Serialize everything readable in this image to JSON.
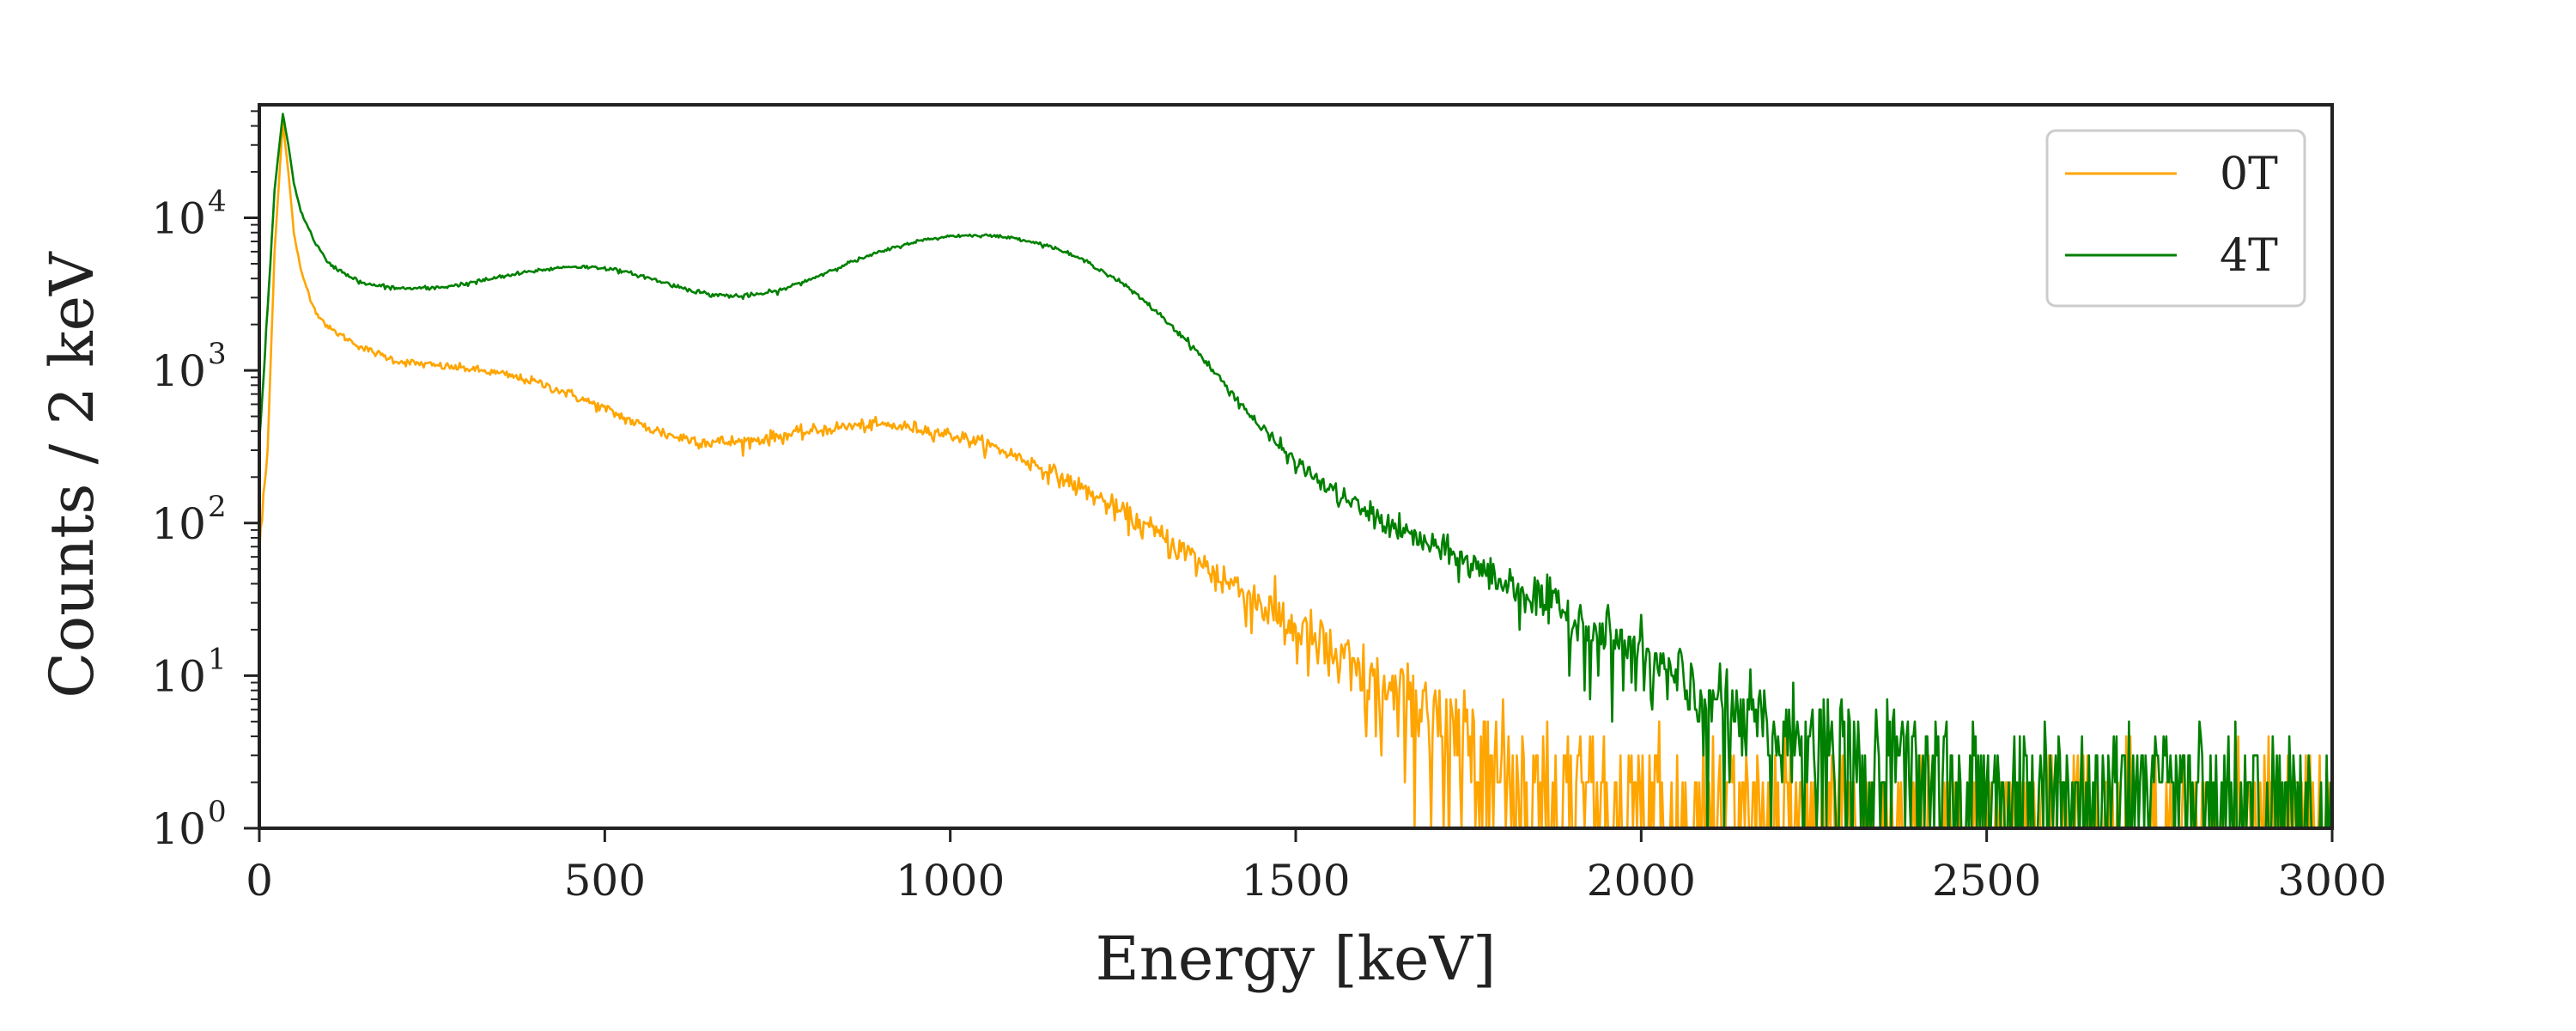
{
  "chart_data": {
    "type": "line",
    "xlabel": "Energy [keV]",
    "ylabel": "Counts / 2 keV",
    "xlim": [
      0,
      3000
    ],
    "ylim": [
      1,
      55000
    ],
    "yscale": "log",
    "grid": false,
    "legend_position": "top-right",
    "x_ticks": [
      "0",
      "500",
      "1000",
      "1500",
      "2000",
      "2500",
      "3000"
    ],
    "y_ticks": [
      {
        "base": "10",
        "exp": "0"
      },
      {
        "base": "10",
        "exp": "1"
      },
      {
        "base": "10",
        "exp": "2"
      },
      {
        "base": "10",
        "exp": "3"
      },
      {
        "base": "10",
        "exp": "4"
      }
    ],
    "bin_width_keV": 2,
    "series": [
      {
        "name": "0T",
        "color": "#ffa500",
        "points": [
          [
            0,
            65
          ],
          [
            12,
            300
          ],
          [
            22,
            6000
          ],
          [
            34,
            42000
          ],
          [
            42,
            20000
          ],
          [
            50,
            8000
          ],
          [
            60,
            4500
          ],
          [
            80,
            2500
          ],
          [
            100,
            1900
          ],
          [
            150,
            1400
          ],
          [
            200,
            1150
          ],
          [
            250,
            1080
          ],
          [
            300,
            1030
          ],
          [
            350,
            950
          ],
          [
            400,
            840
          ],
          [
            450,
            700
          ],
          [
            500,
            560
          ],
          [
            550,
            440
          ],
          [
            600,
            370
          ],
          [
            650,
            340
          ],
          [
            700,
            340
          ],
          [
            750,
            370
          ],
          [
            800,
            400
          ],
          [
            850,
            430
          ],
          [
            900,
            440
          ],
          [
            950,
            420
          ],
          [
            1000,
            380
          ],
          [
            1050,
            330
          ],
          [
            1100,
            270
          ],
          [
            1150,
            210
          ],
          [
            1200,
            160
          ],
          [
            1250,
            115
          ],
          [
            1300,
            85
          ],
          [
            1350,
            60
          ],
          [
            1400,
            42
          ],
          [
            1450,
            30
          ],
          [
            1500,
            20
          ],
          [
            1550,
            14
          ],
          [
            1600,
            9
          ],
          [
            1650,
            6.5
          ],
          [
            1700,
            4.5
          ],
          [
            1750,
            3.2
          ],
          [
            1800,
            2.3
          ],
          [
            1850,
            1.8
          ],
          [
            1900,
            1.5
          ],
          [
            1950,
            1.3
          ],
          [
            2000,
            1.2
          ],
          [
            2200,
            1.05
          ],
          [
            2500,
            1.0
          ],
          [
            3000,
            1.0
          ]
        ]
      },
      {
        "name": "4T",
        "color": "#008000",
        "points": [
          [
            0,
            330
          ],
          [
            12,
            2500
          ],
          [
            22,
            15000
          ],
          [
            34,
            48000
          ],
          [
            42,
            30000
          ],
          [
            50,
            17000
          ],
          [
            60,
            11000
          ],
          [
            80,
            7000
          ],
          [
            100,
            5000
          ],
          [
            150,
            3700
          ],
          [
            200,
            3450
          ],
          [
            250,
            3450
          ],
          [
            300,
            3700
          ],
          [
            350,
            4100
          ],
          [
            400,
            4500
          ],
          [
            450,
            4800
          ],
          [
            500,
            4700
          ],
          [
            550,
            4200
          ],
          [
            600,
            3600
          ],
          [
            650,
            3150
          ],
          [
            700,
            3050
          ],
          [
            750,
            3300
          ],
          [
            800,
            4000
          ],
          [
            850,
            5000
          ],
          [
            900,
            6000
          ],
          [
            950,
            7000
          ],
          [
            1000,
            7600
          ],
          [
            1050,
            7700
          ],
          [
            1100,
            7300
          ],
          [
            1150,
            6400
          ],
          [
            1200,
            5100
          ],
          [
            1250,
            3700
          ],
          [
            1300,
            2400
          ],
          [
            1350,
            1450
          ],
          [
            1400,
            780
          ],
          [
            1450,
            420
          ],
          [
            1500,
            250
          ],
          [
            1550,
            165
          ],
          [
            1600,
            120
          ],
          [
            1650,
            90
          ],
          [
            1700,
            70
          ],
          [
            1750,
            55
          ],
          [
            1800,
            42
          ],
          [
            1850,
            32
          ],
          [
            1900,
            24
          ],
          [
            1950,
            18
          ],
          [
            2000,
            13
          ],
          [
            2050,
            9
          ],
          [
            2100,
            6.5
          ],
          [
            2150,
            5
          ],
          [
            2200,
            4
          ],
          [
            2300,
            2.8
          ],
          [
            2400,
            2.2
          ],
          [
            2500,
            1.8
          ],
          [
            2600,
            1.5
          ],
          [
            2800,
            1.3
          ],
          [
            3000,
            1.2
          ]
        ]
      }
    ]
  }
}
